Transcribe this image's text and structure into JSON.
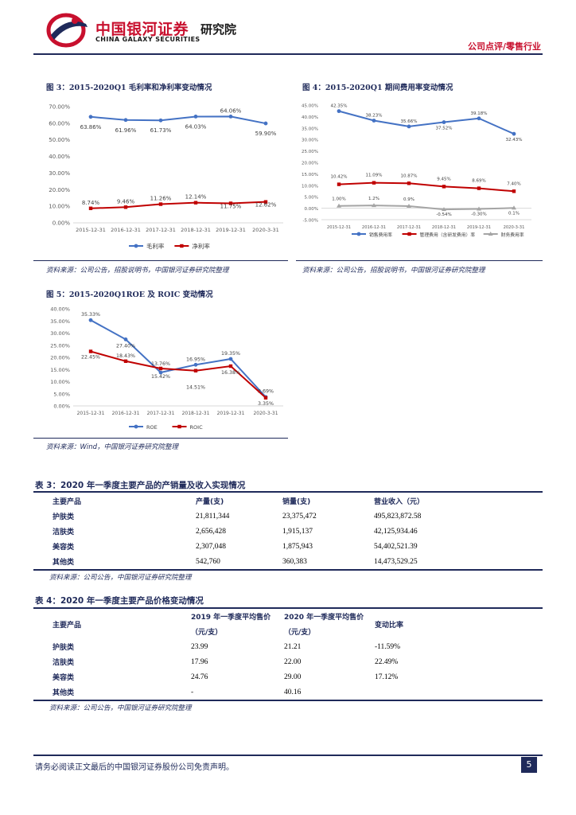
{
  "header": {
    "brand_cn": "中国银河证券",
    "brand_en": "CHINA GALAXY SECURITIES",
    "brand_inst": "研究院",
    "report_tag": "公司点评/零售行业",
    "colors": {
      "brand_red": "#c8102e",
      "navy": "#1f2a5a"
    }
  },
  "fig3": {
    "title": "图 3：2015-2020Q1 毛利率和净利率变动情况",
    "source": "资料来源：公司公告，招股说明书，中国银河证券研究院整理",
    "chart_data": {
      "type": "line",
      "categories": [
        "2015-12-31",
        "2016-12-31",
        "2017-12-31",
        "2018-12-31",
        "2019-12-31",
        "2020-3-31"
      ],
      "y_ticks": [
        "0.00%",
        "10.00%",
        "20.00%",
        "30.00%",
        "40.00%",
        "50.00%",
        "60.00%",
        "70.00%"
      ],
      "ylim": [
        0,
        70
      ],
      "series": [
        {
          "name": "毛利率",
          "color": "#4472c4",
          "marker": "circle",
          "values": [
            63.86,
            61.96,
            61.73,
            64.03,
            64.06,
            59.9
          ],
          "labels": [
            "63.86%",
            "61.96%",
            "61.73%",
            "64.03%",
            "64.06%",
            "59.90%"
          ]
        },
        {
          "name": "净利率",
          "color": "#c00000",
          "marker": "square",
          "values": [
            8.74,
            9.46,
            11.26,
            12.14,
            11.75,
            12.62
          ],
          "labels": [
            "8.74%",
            "9.46%",
            "11.26%",
            "12.14%",
            "11.75%",
            "12.62%"
          ]
        }
      ]
    }
  },
  "fig4": {
    "title": "图 4：2015-2020Q1 期间费用率变动情况",
    "source": "资料来源：公司公告，招股说明书，中国银河证券研究院整理",
    "chart_data": {
      "type": "line",
      "categories": [
        "2015-12-31",
        "2016-12-31",
        "2017-12-31",
        "2018-12-31",
        "2019-12-31",
        "2020-3-31"
      ],
      "y_ticks": [
        "-5.00%",
        "0.00%",
        "5.00%",
        "10.00%",
        "15.00%",
        "20.00%",
        "25.00%",
        "30.00%",
        "35.00%",
        "40.00%",
        "45.00%"
      ],
      "ylim": [
        -5,
        45
      ],
      "series": [
        {
          "name": "销售费用率",
          "color": "#4472c4",
          "marker": "circle",
          "values": [
            42.35,
            38.23,
            35.66,
            37.52,
            39.18,
            32.43
          ],
          "labels": [
            "42.35%",
            "38.23%",
            "35.66%",
            "37.52%",
            "39.18%",
            "32.43%"
          ]
        },
        {
          "name": "管理费用（含研发费用）率",
          "color": "#c00000",
          "marker": "square",
          "values": [
            10.42,
            11.09,
            10.87,
            9.45,
            8.69,
            7.4
          ],
          "labels": [
            "10.42%",
            "11.09%",
            "10.87%",
            "9.45%",
            "8.69%",
            "7.40%"
          ]
        },
        {
          "name": "财务费用率",
          "color": "#a5a5a5",
          "marker": "triangle",
          "values": [
            1.0,
            1.2,
            0.9,
            -0.54,
            -0.3,
            0.1
          ],
          "labels": [
            "1.00%",
            "1.2%",
            "0.9%",
            "-0.54%",
            "-0.30%",
            "0.1%"
          ]
        }
      ]
    }
  },
  "fig5": {
    "title": "图 5：2015-2020Q1ROE 及 ROIC 变动情况",
    "source": "资料来源：Wind，中国银河证券研究院整理",
    "chart_data": {
      "type": "line",
      "categories": [
        "2015-12-31",
        "2016-12-31",
        "2017-12-31",
        "2018-12-31",
        "2019-12-31",
        "2020-3-31"
      ],
      "y_ticks": [
        "0.00%",
        "5.00%",
        "10.00%",
        "15.00%",
        "20.00%",
        "25.00%",
        "30.00%",
        "35.00%",
        "40.00%"
      ],
      "ylim": [
        0,
        40
      ],
      "series": [
        {
          "name": "ROE",
          "color": "#4472c4",
          "marker": "circle",
          "values": [
            35.33,
            27.4,
            13.76,
            16.95,
            19.35,
            3.69
          ],
          "labels": [
            "35.33%",
            "27.40%",
            "13.76%",
            "16.95%",
            "19.35%",
            "3.69%"
          ]
        },
        {
          "name": "ROIC",
          "color": "#c00000",
          "marker": "square",
          "values": [
            22.45,
            18.43,
            15.42,
            14.51,
            16.38,
            3.35
          ],
          "labels": [
            "22.45%",
            "18.43%",
            "15.42%",
            "14.51%",
            "16.38%",
            "3.35%"
          ]
        }
      ]
    }
  },
  "table3": {
    "title": "表 3：2020 年一季度主要产品的产销量及收入实现情况",
    "headers": [
      "主要产品",
      "产量(支)",
      "销量(支)",
      "营业收入（元）"
    ],
    "rows": [
      [
        "护肤类",
        "21,811,344",
        "23,375,472",
        "495,823,872.58"
      ],
      [
        "洁肤类",
        "2,656,428",
        "1,915,137",
        "42,125,934.46"
      ],
      [
        "美容类",
        "2,307,048",
        "1,875,943",
        "54,402,521.39"
      ],
      [
        "其他类",
        "542,760",
        "360,383",
        "14,473,529.25"
      ]
    ],
    "source": "资料来源：公司公告，中国银河证券研究院整理"
  },
  "table4": {
    "title": "表 4：2020 年一季度主要产品价格变动情况",
    "headers": [
      "主要产品",
      "2019 年一季度平均售价",
      "（元/支）",
      "2020 年一季度平均售价",
      "（元/支）",
      "变动比率"
    ],
    "rows": [
      [
        "护肤类",
        "23.99",
        "21.21",
        "-11.59%"
      ],
      [
        "洁肤类",
        "17.96",
        "22.00",
        "22.49%"
      ],
      [
        "美容类",
        "24.76",
        "29.00",
        "17.12%"
      ],
      [
        "其他类",
        "-",
        "40.16",
        ""
      ]
    ],
    "source": "资料来源：公司公告，中国银河证券研究院整理"
  },
  "footer": {
    "disclaimer": "请务必阅读正文最后的中国银河证券股份公司免责声明。",
    "page_number": "5"
  }
}
